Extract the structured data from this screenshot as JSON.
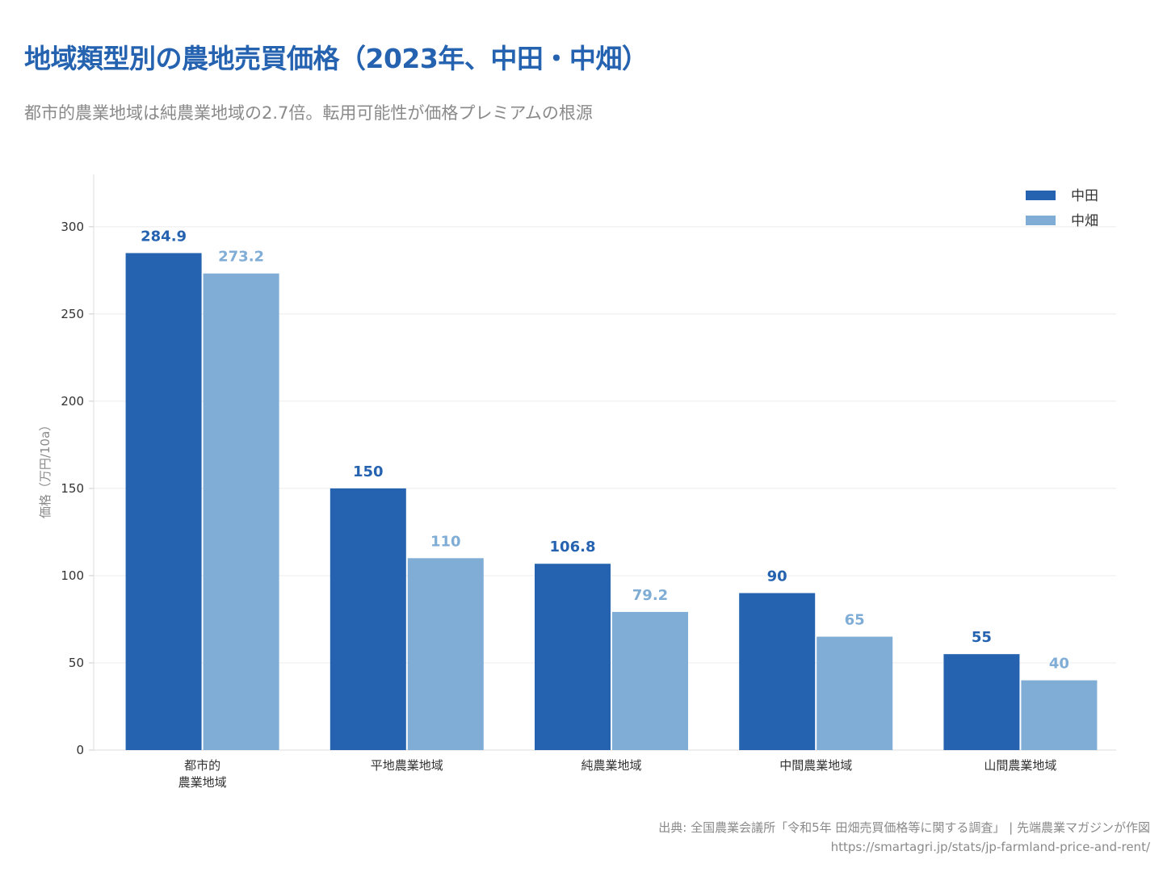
{
  "header": {
    "title": "地域類型別の農地売買価格（2023年、中田・中畑）",
    "subtitle": "都市的農業地域は純農業地域の2.7倍。転用可能性が価格プレミアムの根源"
  },
  "footer": {
    "source": "出典: 全国農業会議所「令和5年 田畑売買価格等に関する調査」 | 先端農業マガジンが作図",
    "url": "https://smartagri.jp/stats/jp-farmland-price-and-rent/"
  },
  "chart_data": {
    "type": "bar",
    "title": "地域類型別の農地売買価格（2023年、中田・中畑）",
    "subtitle": "都市的農業地域は純農業地域の2.7倍。転用可能性が価格プレミアムの根源",
    "categories": [
      [
        "都市的",
        "農業地域"
      ],
      [
        "平地農業地域"
      ],
      [
        "純農業地域"
      ],
      [
        "中間農業地域"
      ],
      [
        "山間農業地域"
      ]
    ],
    "series": [
      {
        "name": "中田",
        "values": [
          284.9,
          150,
          106.8,
          90,
          55
        ],
        "labels": [
          "284.9",
          "150",
          "106.8",
          "90",
          "55"
        ],
        "color": "#2563b0"
      },
      {
        "name": "中畑",
        "values": [
          273.2,
          110,
          79.2,
          65,
          40
        ],
        "labels": [
          "273.2",
          "110",
          "79.2",
          "65",
          "40"
        ],
        "color": "#7fadd6"
      }
    ],
    "xlabel": "",
    "ylabel": "価格（万円/10a）",
    "ylim": [
      0,
      330
    ],
    "yticks": [
      0,
      50,
      100,
      150,
      200,
      250,
      300
    ],
    "grid": true,
    "legend": "top-right"
  }
}
